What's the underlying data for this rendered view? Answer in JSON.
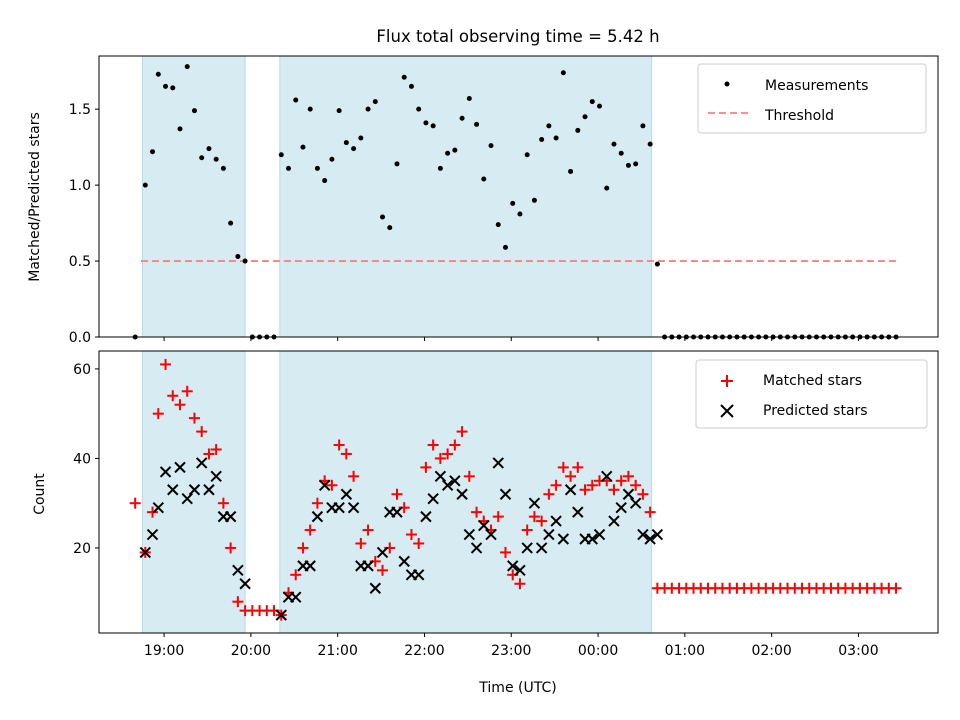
{
  "chart_data": [
    {
      "type": "scatter",
      "title": "Flux total observing time = 5.42 h",
      "xlabel": "",
      "ylabel": "Matched/Predicted stars",
      "xlim": [
        "18:15",
        "03:55"
      ],
      "ylim": [
        0,
        1.85
      ],
      "yticks": [
        "0.0",
        "0.5",
        "1.0",
        "1.5"
      ],
      "shaded_intervals": [
        [
          "18:45",
          "19:56"
        ],
        [
          "20:20",
          "00:37"
        ]
      ],
      "threshold": {
        "y": 0.5,
        "x_range": [
          "18:44",
          "03:27"
        ]
      },
      "legend": {
        "position": "top-right",
        "entries": [
          "Measurements",
          "Threshold"
        ]
      },
      "series": [
        {
          "name": "Measurements",
          "x": [
            "18:40",
            "18:47",
            "18:52",
            "18:56",
            "19:01",
            "19:06",
            "19:11",
            "19:16",
            "19:21",
            "19:26",
            "19:31",
            "19:36",
            "19:41",
            "19:46",
            "19:51",
            "19:56",
            "20:01",
            "20:06",
            "20:11",
            "20:16",
            "20:21",
            "20:26",
            "20:31",
            "20:36",
            "20:41",
            "20:46",
            "20:51",
            "20:56",
            "21:01",
            "21:06",
            "21:11",
            "21:16",
            "21:21",
            "21:26",
            "21:31",
            "21:36",
            "21:41",
            "21:46",
            "21:51",
            "21:56",
            "22:01",
            "22:06",
            "22:11",
            "22:16",
            "22:21",
            "22:26",
            "22:31",
            "22:36",
            "22:41",
            "22:46",
            "22:51",
            "22:56",
            "23:01",
            "23:06",
            "23:11",
            "23:16",
            "23:21",
            "23:26",
            "23:31",
            "23:36",
            "23:41",
            "23:46",
            "23:51",
            "23:56",
            "00:01",
            "00:06",
            "00:11",
            "00:16",
            "00:21",
            "00:26",
            "00:31",
            "00:36",
            "00:41",
            "00:46",
            "00:51",
            "00:56",
            "01:01",
            "01:06",
            "01:11",
            "01:16",
            "01:21",
            "01:26",
            "01:31",
            "01:36",
            "01:41",
            "01:46",
            "01:51",
            "01:56",
            "02:01",
            "02:06",
            "02:11",
            "02:16",
            "02:21",
            "02:26",
            "02:31",
            "02:36",
            "02:41",
            "02:46",
            "02:51",
            "02:56",
            "03:01",
            "03:06",
            "03:11",
            "03:16",
            "03:21",
            "03:26"
          ],
          "y": [
            0.0,
            1.0,
            1.22,
            1.73,
            1.65,
            1.64,
            1.37,
            1.78,
            1.49,
            1.18,
            1.24,
            1.17,
            1.11,
            0.75,
            0.53,
            0.5,
            0.0,
            0.0,
            0.0,
            0.0,
            1.2,
            1.11,
            1.56,
            1.25,
            1.5,
            1.11,
            1.03,
            1.17,
            1.49,
            1.28,
            1.24,
            1.31,
            1.5,
            1.55,
            0.79,
            0.72,
            1.14,
            1.71,
            1.65,
            1.5,
            1.41,
            1.39,
            1.11,
            1.21,
            1.23,
            1.44,
            1.57,
            1.4,
            1.04,
            1.26,
            0.74,
            0.59,
            0.88,
            0.81,
            1.2,
            0.9,
            1.3,
            1.39,
            1.31,
            1.74,
            1.09,
            1.36,
            1.45,
            1.55,
            1.52,
            0.98,
            1.27,
            1.21,
            1.13,
            1.14,
            1.39,
            1.27,
            0.48,
            0.0,
            0.0,
            0.0,
            0.0,
            0.0,
            0.0,
            0.0,
            0.0,
            0.0,
            0.0,
            0.0,
            0.0,
            0.0,
            0.0,
            0.0,
            0.0,
            0.0,
            0.0,
            0.0,
            0.0,
            0.0,
            0.0,
            0.0,
            0.0,
            0.0,
            0.0,
            0.0,
            0.0,
            0.0,
            0.0,
            0.0,
            0.0,
            0.0
          ]
        }
      ]
    },
    {
      "type": "scatter",
      "title": "",
      "xlabel": "Time (UTC)",
      "ylabel": "Count",
      "xlim": [
        "18:15",
        "03:55"
      ],
      "ylim": [
        1,
        64
      ],
      "yticks": [
        "20",
        "40",
        "60"
      ],
      "xticks": [
        "19:00",
        "20:00",
        "21:00",
        "22:00",
        "23:00",
        "00:00",
        "01:00",
        "02:00",
        "03:00"
      ],
      "shaded_intervals": [
        [
          "18:45",
          "19:56"
        ],
        [
          "20:20",
          "00:37"
        ]
      ],
      "legend": {
        "position": "top-right",
        "entries": [
          "Matched stars",
          "Predicted stars"
        ]
      },
      "series": [
        {
          "name": "Matched stars",
          "x": [
            "18:40",
            "18:47",
            "18:52",
            "18:56",
            "19:01",
            "19:06",
            "19:11",
            "19:16",
            "19:21",
            "19:26",
            "19:31",
            "19:36",
            "19:41",
            "19:46",
            "19:51",
            "19:56",
            "20:01",
            "20:06",
            "20:11",
            "20:16",
            "20:21",
            "20:26",
            "20:31",
            "20:36",
            "20:41",
            "20:46",
            "20:51",
            "20:56",
            "21:01",
            "21:06",
            "21:11",
            "21:16",
            "21:21",
            "21:26",
            "21:31",
            "21:36",
            "21:41",
            "21:46",
            "21:51",
            "21:56",
            "22:01",
            "22:06",
            "22:11",
            "22:16",
            "22:21",
            "22:26",
            "22:31",
            "22:36",
            "22:41",
            "22:46",
            "22:51",
            "22:56",
            "23:01",
            "23:06",
            "23:11",
            "23:16",
            "23:21",
            "23:26",
            "23:31",
            "23:36",
            "23:41",
            "23:46",
            "23:51",
            "23:56",
            "00:01",
            "00:06",
            "00:11",
            "00:16",
            "00:21",
            "00:26",
            "00:31",
            "00:36",
            "00:41",
            "00:46",
            "00:51",
            "00:56",
            "01:01",
            "01:06",
            "01:11",
            "01:16",
            "01:21",
            "01:26",
            "01:31",
            "01:36",
            "01:41",
            "01:46",
            "01:51",
            "01:56",
            "02:01",
            "02:06",
            "02:11",
            "02:16",
            "02:21",
            "02:26",
            "02:31",
            "02:36",
            "02:41",
            "02:46",
            "02:51",
            "02:56",
            "03:01",
            "03:06",
            "03:11",
            "03:16",
            "03:21",
            "03:26"
          ],
          "y": [
            30,
            19,
            28,
            50,
            61,
            54,
            52,
            55,
            49,
            46,
            41,
            42,
            30,
            20,
            8,
            6,
            6,
            6,
            6,
            6,
            5,
            10,
            14,
            20,
            24,
            30,
            35,
            34,
            43,
            41,
            36,
            21,
            24,
            17,
            15,
            20,
            32,
            29,
            23,
            21,
            38,
            43,
            40,
            41,
            43,
            46,
            36,
            28,
            26,
            24,
            27,
            19,
            14,
            12,
            24,
            27,
            26,
            32,
            34,
            38,
            36,
            38,
            33,
            34,
            35,
            35,
            33,
            35,
            36,
            34,
            32,
            28,
            11,
            11,
            11,
            11,
            11,
            11,
            11,
            11,
            11,
            11,
            11,
            11,
            11,
            11,
            11,
            11,
            11,
            11,
            11,
            11,
            11,
            11,
            11,
            11,
            11,
            11,
            11,
            11,
            11,
            11,
            11,
            11,
            11,
            11
          ]
        },
        {
          "name": "Predicted stars",
          "x": [
            "18:47",
            "18:52",
            "18:56",
            "19:01",
            "19:06",
            "19:11",
            "19:16",
            "19:21",
            "19:26",
            "19:31",
            "19:36",
            "19:41",
            "19:46",
            "19:51",
            "19:56",
            "20:21",
            "20:26",
            "20:31",
            "20:36",
            "20:41",
            "20:46",
            "20:51",
            "20:56",
            "21:01",
            "21:06",
            "21:11",
            "21:16",
            "21:21",
            "21:26",
            "21:31",
            "21:36",
            "21:41",
            "21:46",
            "21:51",
            "21:56",
            "22:01",
            "22:06",
            "22:11",
            "22:16",
            "22:21",
            "22:26",
            "22:31",
            "22:36",
            "22:41",
            "22:46",
            "22:51",
            "22:56",
            "23:01",
            "23:06",
            "23:11",
            "23:16",
            "23:21",
            "23:26",
            "23:31",
            "23:36",
            "23:41",
            "23:46",
            "23:51",
            "23:56",
            "00:01",
            "00:06",
            "00:11",
            "00:16",
            "00:21",
            "00:26",
            "00:31",
            "00:36",
            "00:41"
          ],
          "y": [
            19,
            23,
            29,
            37,
            33,
            38,
            31,
            33,
            39,
            33,
            36,
            27,
            27,
            15,
            12,
            5,
            9,
            9,
            16,
            16,
            27,
            34,
            29,
            29,
            32,
            29,
            16,
            16,
            11,
            19,
            28,
            28,
            17,
            14,
            14,
            27,
            31,
            36,
            34,
            35,
            32,
            23,
            20,
            25,
            23,
            39,
            32,
            16,
            15,
            20,
            30,
            20,
            23,
            26,
            22,
            33,
            28,
            22,
            22,
            23,
            36,
            26,
            29,
            32,
            30,
            23,
            22,
            23
          ]
        }
      ]
    }
  ],
  "colors": {
    "shade": "#add8e6",
    "measurement": "#000000",
    "threshold": "#ff8080",
    "matched": "#ff0000",
    "predicted": "#000000"
  }
}
